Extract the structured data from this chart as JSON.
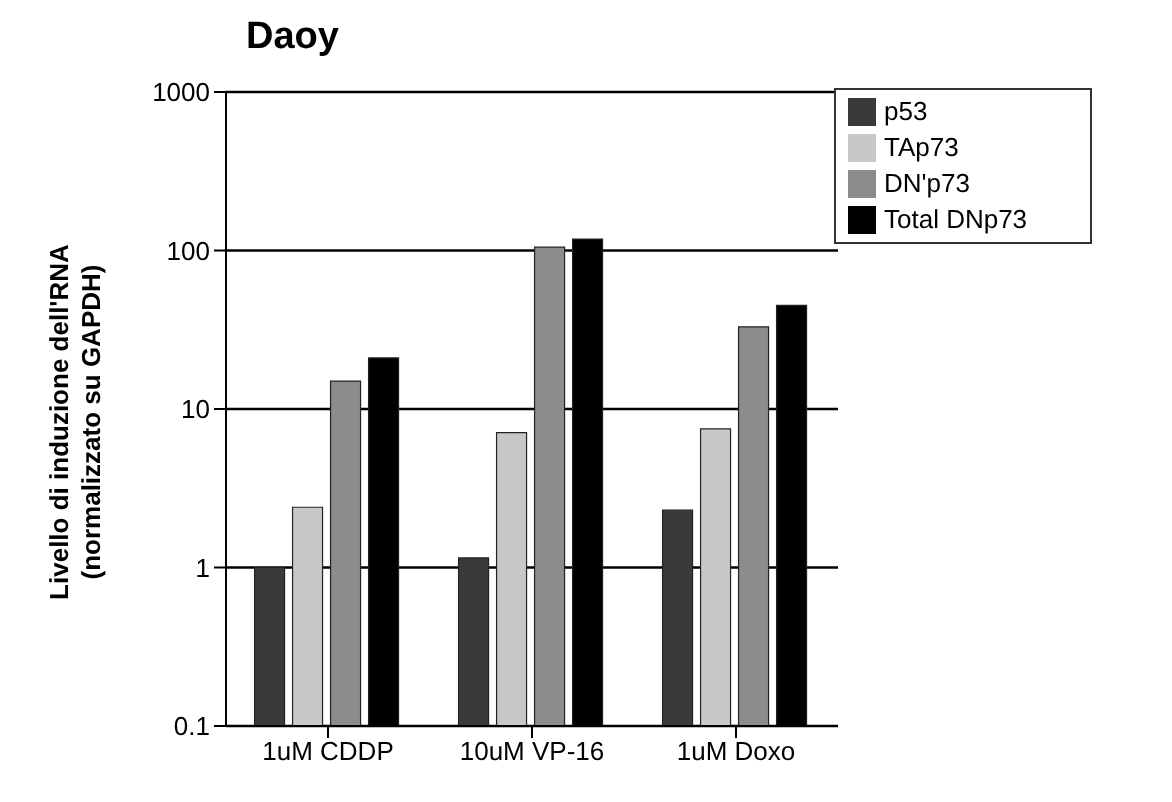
{
  "chart_data": {
    "type": "bar",
    "title": "Daoy",
    "ylabel": "Livello di induzione dell'RNA\n(normalizzato su GAPDH)",
    "categories": [
      "1uM CDDP",
      "10uM VP-16",
      "1uM Doxo"
    ],
    "series": [
      {
        "name": "p53",
        "color": "#3a3a3a",
        "values": [
          1.0,
          1.15,
          2.3
        ]
      },
      {
        "name": "TAp73",
        "color": "#c8c8c8",
        "values": [
          2.4,
          7.1,
          7.5
        ]
      },
      {
        "name": "DN'p73",
        "color": "#8c8c8c",
        "values": [
          15,
          105,
          33
        ]
      },
      {
        "name": "Total DNp73",
        "color": "#000000",
        "values": [
          21,
          118,
          45
        ]
      }
    ],
    "log": true,
    "ylim": [
      0.1,
      1000
    ],
    "yticks": [
      0.1,
      1,
      10,
      100,
      1000
    ],
    "grid": "y",
    "legend": "top right"
  }
}
